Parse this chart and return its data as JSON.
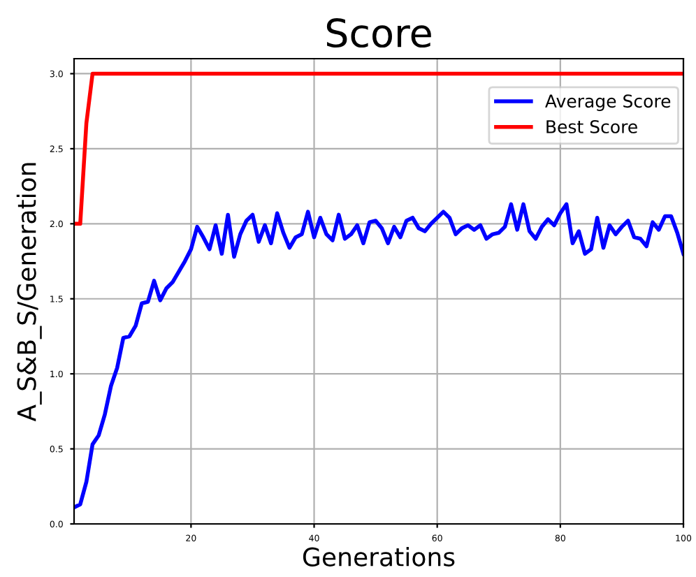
{
  "chart_data": {
    "type": "line",
    "title": "Score",
    "xlabel": "Generations",
    "ylabel": "A_S&B_S/Generation",
    "x": [
      1,
      2,
      3,
      4,
      5,
      6,
      7,
      8,
      9,
      10,
      11,
      12,
      13,
      14,
      15,
      16,
      17,
      18,
      19,
      20,
      21,
      22,
      23,
      24,
      25,
      26,
      27,
      28,
      29,
      30,
      31,
      32,
      33,
      34,
      35,
      36,
      37,
      38,
      39,
      40,
      41,
      42,
      43,
      44,
      45,
      46,
      47,
      48,
      49,
      50,
      51,
      52,
      53,
      54,
      55,
      56,
      57,
      58,
      59,
      60,
      61,
      62,
      63,
      64,
      65,
      66,
      67,
      68,
      69,
      70,
      71,
      72,
      73,
      74,
      75,
      76,
      77,
      78,
      79,
      80,
      81,
      82,
      83,
      84,
      85,
      86,
      87,
      88,
      89,
      90,
      91,
      92,
      93,
      94,
      95,
      96,
      97,
      98,
      99,
      100
    ],
    "series": [
      {
        "name": "Average Score",
        "color": "#0000ff",
        "values": [
          0.11,
          0.13,
          0.28,
          0.53,
          0.59,
          0.73,
          0.92,
          1.04,
          1.24,
          1.25,
          1.32,
          1.47,
          1.48,
          1.62,
          1.49,
          1.57,
          1.61,
          1.68,
          1.75,
          1.83,
          1.98,
          1.91,
          1.83,
          1.99,
          1.8,
          2.06,
          1.78,
          1.93,
          2.02,
          2.06,
          1.88,
          1.99,
          1.87,
          2.07,
          1.94,
          1.84,
          1.91,
          1.93,
          2.08,
          1.91,
          2.04,
          1.93,
          1.89,
          2.06,
          1.9,
          1.93,
          1.99,
          1.87,
          2.01,
          2.02,
          1.97,
          1.87,
          1.98,
          1.91,
          2.02,
          2.04,
          1.97,
          1.95,
          2.0,
          2.04,
          2.08,
          2.04,
          1.93,
          1.97,
          1.99,
          1.96,
          1.99,
          1.9,
          1.93,
          1.94,
          1.98,
          2.13,
          1.96,
          2.13,
          1.95,
          1.9,
          1.98,
          2.03,
          1.99,
          2.07,
          2.13,
          1.87,
          1.95,
          1.8,
          1.83,
          2.04,
          1.84,
          1.99,
          1.93,
          1.98,
          2.02,
          1.91,
          1.9,
          1.85,
          2.01,
          1.96,
          2.05,
          2.05,
          1.94,
          1.8
        ]
      },
      {
        "name": "Best Score",
        "color": "#ff0000",
        "values": [
          2.0,
          2.0,
          2.67,
          3.0,
          3.0,
          3.0,
          3.0,
          3.0,
          3.0,
          3.0,
          3.0,
          3.0,
          3.0,
          3.0,
          3.0,
          3.0,
          3.0,
          3.0,
          3.0,
          3.0,
          3.0,
          3.0,
          3.0,
          3.0,
          3.0,
          3.0,
          3.0,
          3.0,
          3.0,
          3.0,
          3.0,
          3.0,
          3.0,
          3.0,
          3.0,
          3.0,
          3.0,
          3.0,
          3.0,
          3.0,
          3.0,
          3.0,
          3.0,
          3.0,
          3.0,
          3.0,
          3.0,
          3.0,
          3.0,
          3.0,
          3.0,
          3.0,
          3.0,
          3.0,
          3.0,
          3.0,
          3.0,
          3.0,
          3.0,
          3.0,
          3.0,
          3.0,
          3.0,
          3.0,
          3.0,
          3.0,
          3.0,
          3.0,
          3.0,
          3.0,
          3.0,
          3.0,
          3.0,
          3.0,
          3.0,
          3.0,
          3.0,
          3.0,
          3.0,
          3.0,
          3.0,
          3.0,
          3.0,
          3.0,
          3.0,
          3.0,
          3.0,
          3.0,
          3.0,
          3.0,
          3.0,
          3.0,
          3.0,
          3.0,
          3.0,
          3.0,
          3.0,
          3.0,
          3.0,
          3.0
        ]
      }
    ],
    "xlim": [
      1,
      100
    ],
    "xticks": [
      20,
      40,
      60,
      80,
      100
    ],
    "ylim": [
      0,
      3.1
    ],
    "yticks": [
      {
        "value": 0,
        "label": "0.0"
      },
      {
        "value": 0.5,
        "label": "0.5"
      },
      {
        "value": 1,
        "label": "1.0"
      },
      {
        "value": 1.5,
        "label": "1.5"
      },
      {
        "value": 2,
        "label": "2.0"
      },
      {
        "value": 2.5,
        "label": "2.5"
      },
      {
        "value": 3,
        "label": "3.0"
      }
    ],
    "grid": true,
    "legend": "top right",
    "line_style": "solid",
    "marker": "none"
  }
}
